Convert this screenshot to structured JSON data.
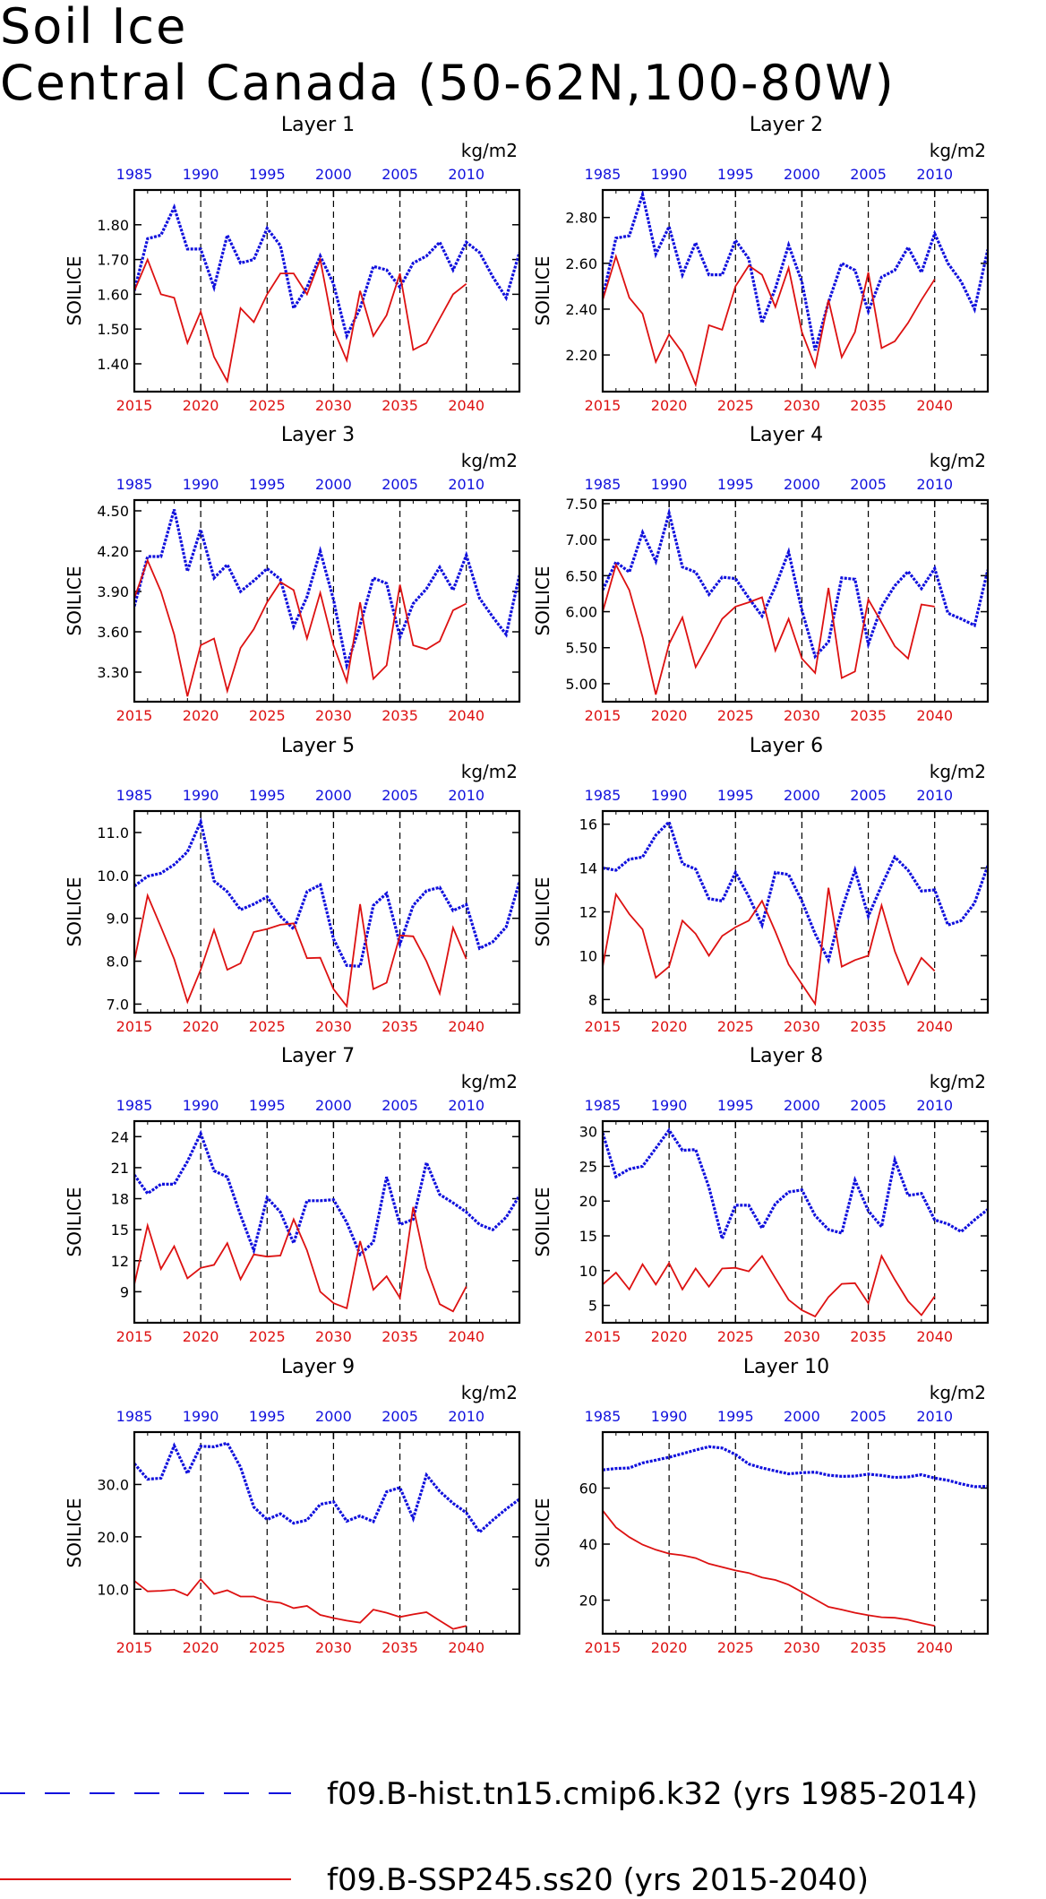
{
  "title": [
    "Soil Ice",
    "Central Canada (50-62N,100-80W)"
  ],
  "legend": [
    {
      "label": "f09.B-hist.tn15.cmip6.k32 (yrs 1985-2014)",
      "color": "#1111dd",
      "style": "dashed"
    },
    {
      "label": "f09.B-SSP245.ss20 (yrs 2015-2040)",
      "color": "#dd1111",
      "style": "solid"
    }
  ],
  "colors": {
    "hist": "#1111dd",
    "ssp": "#dd1111"
  },
  "chart_data": [
    {
      "type": "line",
      "title": "Layer 1",
      "ylabel": "SOILICE",
      "unit": "kg/m2",
      "ylim": [
        1.32,
        1.9
      ],
      "yticks": [
        "1.40",
        "1.50",
        "1.60",
        "1.70",
        "1.80"
      ],
      "x_top": [
        1985,
        1990,
        1995,
        2000,
        2005,
        2010
      ],
      "x_bottom": [
        2015,
        2020,
        2025,
        2030,
        2035,
        2040
      ],
      "series": [
        {
          "name": "f09.B-hist.tn15.cmip6.k32 (yrs 1985-2014)",
          "start": 1985,
          "values": [
            1.61,
            1.76,
            1.77,
            1.85,
            1.73,
            1.73,
            1.62,
            1.77,
            1.69,
            1.7,
            1.79,
            1.74,
            1.56,
            1.62,
            1.71,
            1.63,
            1.48,
            1.56,
            1.68,
            1.67,
            1.62,
            1.69,
            1.71,
            1.75,
            1.67,
            1.75,
            1.72,
            1.65,
            1.59,
            1.72
          ]
        },
        {
          "name": "f09.B-SSP245.ss20 (yrs 2015-2040)",
          "start": 2015,
          "values": [
            1.61,
            1.7,
            1.6,
            1.59,
            1.46,
            1.55,
            1.42,
            1.35,
            1.56,
            1.52,
            1.6,
            1.66,
            1.66,
            1.6,
            1.7,
            1.5,
            1.41,
            1.61,
            1.48,
            1.54,
            1.66,
            1.44,
            1.46,
            1.53,
            1.6,
            1.63
          ]
        }
      ]
    },
    {
      "type": "line",
      "title": "Layer 2",
      "ylabel": "SOILICE",
      "unit": "kg/m2",
      "ylim": [
        2.04,
        2.92
      ],
      "yticks": [
        "2.20",
        "2.40",
        "2.60",
        "2.80"
      ],
      "x_top": [
        1985,
        1990,
        1995,
        2000,
        2005,
        2010
      ],
      "x_bottom": [
        2015,
        2020,
        2025,
        2030,
        2035,
        2040
      ],
      "series": [
        {
          "name": "f09.B-hist.tn15.cmip6.k32 (yrs 1985-2014)",
          "start": 1985,
          "values": [
            2.45,
            2.71,
            2.72,
            2.9,
            2.64,
            2.76,
            2.55,
            2.69,
            2.55,
            2.55,
            2.7,
            2.62,
            2.34,
            2.49,
            2.68,
            2.52,
            2.22,
            2.43,
            2.6,
            2.57,
            2.39,
            2.54,
            2.57,
            2.67,
            2.56,
            2.73,
            2.6,
            2.52,
            2.4,
            2.66
          ]
        },
        {
          "name": "f09.B-SSP245.ss20 (yrs 2015-2040)",
          "start": 2015,
          "values": [
            2.44,
            2.63,
            2.45,
            2.38,
            2.17,
            2.29,
            2.21,
            2.07,
            2.33,
            2.31,
            2.5,
            2.59,
            2.55,
            2.41,
            2.58,
            2.3,
            2.15,
            2.44,
            2.19,
            2.3,
            2.56,
            2.23,
            2.26,
            2.34,
            2.44,
            2.53
          ]
        }
      ]
    },
    {
      "type": "line",
      "title": "Layer 3",
      "ylabel": "SOILICE",
      "unit": "kg/m2",
      "ylim": [
        3.08,
        4.58
      ],
      "yticks": [
        "3.30",
        "3.60",
        "3.90",
        "4.20",
        "4.50"
      ],
      "x_top": [
        1985,
        1990,
        1995,
        2000,
        2005,
        2010
      ],
      "x_bottom": [
        2015,
        2020,
        2025,
        2030,
        2035,
        2040
      ],
      "series": [
        {
          "name": "f09.B-hist.tn15.cmip6.k32 (yrs 1985-2014)",
          "start": 1985,
          "values": [
            3.79,
            4.16,
            4.16,
            4.51,
            4.05,
            4.36,
            4.0,
            4.1,
            3.9,
            3.98,
            4.07,
            3.99,
            3.64,
            3.86,
            4.2,
            3.84,
            3.35,
            3.65,
            4.0,
            3.96,
            3.56,
            3.81,
            3.92,
            4.08,
            3.91,
            4.17,
            3.85,
            3.71,
            3.58,
            4.02
          ]
        },
        {
          "name": "f09.B-SSP245.ss20 (yrs 2015-2040)",
          "start": 2015,
          "values": [
            3.85,
            4.13,
            3.9,
            3.58,
            3.12,
            3.5,
            3.55,
            3.16,
            3.48,
            3.62,
            3.82,
            3.97,
            3.91,
            3.55,
            3.89,
            3.5,
            3.23,
            3.82,
            3.25,
            3.35,
            3.95,
            3.5,
            3.47,
            3.53,
            3.76,
            3.81
          ]
        }
      ]
    },
    {
      "type": "line",
      "title": "Layer 4",
      "ylabel": "SOILICE",
      "unit": "kg/m2",
      "ylim": [
        4.75,
        7.55
      ],
      "yticks": [
        "5.00",
        "5.50",
        "6.00",
        "6.50",
        "7.00",
        "7.50"
      ],
      "x_top": [
        1985,
        1990,
        1995,
        2000,
        2005,
        2010
      ],
      "x_bottom": [
        2015,
        2020,
        2025,
        2030,
        2035,
        2040
      ],
      "series": [
        {
          "name": "f09.B-hist.tn15.cmip6.k32 (yrs 1985-2014)",
          "start": 1985,
          "values": [
            6.3,
            6.69,
            6.55,
            7.1,
            6.7,
            7.37,
            6.62,
            6.55,
            6.24,
            6.48,
            6.46,
            6.19,
            5.94,
            6.35,
            6.83,
            6.02,
            5.38,
            5.58,
            6.47,
            6.45,
            5.55,
            6.07,
            6.36,
            6.56,
            6.32,
            6.6,
            5.98,
            5.9,
            5.81,
            6.58
          ]
        },
        {
          "name": "f09.B-SSP245.ss20 (yrs 2015-2040)",
          "start": 2015,
          "values": [
            6.0,
            6.65,
            6.3,
            5.65,
            4.85,
            5.55,
            5.92,
            5.23,
            5.56,
            5.9,
            6.07,
            6.13,
            6.2,
            5.46,
            5.9,
            5.35,
            5.15,
            6.33,
            5.08,
            5.17,
            6.17,
            5.85,
            5.52,
            5.35,
            6.1,
            6.07
          ]
        }
      ]
    },
    {
      "type": "line",
      "title": "Layer 5",
      "ylabel": "SOILICE",
      "unit": "kg/m2",
      "ylim": [
        6.8,
        11.5
      ],
      "yticks": [
        "7.0",
        "8.0",
        "9.0",
        "10.0",
        "11.0"
      ],
      "x_top": [
        1985,
        1990,
        1995,
        2000,
        2005,
        2010
      ],
      "x_bottom": [
        2015,
        2020,
        2025,
        2030,
        2035,
        2040
      ],
      "series": [
        {
          "name": "f09.B-hist.tn15.cmip6.k32 (yrs 1985-2014)",
          "start": 1985,
          "values": [
            9.75,
            9.98,
            10.05,
            10.25,
            10.55,
            11.25,
            9.87,
            9.62,
            9.2,
            9.33,
            9.5,
            9.05,
            8.75,
            9.62,
            9.78,
            8.52,
            7.9,
            7.88,
            9.3,
            9.58,
            8.4,
            9.3,
            9.64,
            9.72,
            9.18,
            9.32,
            8.3,
            8.45,
            8.8,
            9.85
          ]
        },
        {
          "name": "f09.B-SSP245.ss20 (yrs 2015-2040)",
          "start": 2015,
          "values": [
            8.0,
            9.53,
            8.8,
            8.05,
            7.05,
            7.8,
            8.73,
            7.8,
            7.95,
            8.68,
            8.75,
            8.85,
            8.88,
            8.07,
            8.08,
            7.35,
            6.95,
            9.33,
            7.35,
            7.5,
            8.6,
            8.58,
            8.0,
            7.25,
            8.78,
            8.05
          ]
        }
      ]
    },
    {
      "type": "line",
      "title": "Layer 6",
      "ylabel": "SOILICE",
      "unit": "kg/m2",
      "ylim": [
        7.4,
        16.6
      ],
      "yticks": [
        "8",
        "10",
        "12",
        "14",
        "16"
      ],
      "x_top": [
        1985,
        1990,
        1995,
        2000,
        2005,
        2010
      ],
      "x_bottom": [
        2015,
        2020,
        2025,
        2030,
        2035,
        2040
      ],
      "series": [
        {
          "name": "f09.B-hist.tn15.cmip6.k32 (yrs 1985-2014)",
          "start": 1985,
          "values": [
            14.0,
            13.9,
            14.4,
            14.5,
            15.5,
            16.1,
            14.2,
            13.95,
            12.6,
            12.5,
            13.8,
            12.7,
            11.4,
            13.8,
            13.7,
            12.5,
            11.0,
            9.8,
            12.1,
            13.9,
            11.8,
            13.2,
            14.5,
            13.9,
            12.95,
            13.0,
            11.4,
            11.6,
            12.4,
            14.1
          ]
        },
        {
          "name": "f09.B-SSP245.ss20 (yrs 2015-2040)",
          "start": 2015,
          "values": [
            9.5,
            12.8,
            11.9,
            11.2,
            9.0,
            9.5,
            11.6,
            11.0,
            10.0,
            10.9,
            11.3,
            11.6,
            12.5,
            11.1,
            9.6,
            8.7,
            7.8,
            13.1,
            9.5,
            9.8,
            10.0,
            12.3,
            10.2,
            8.7,
            9.9,
            9.3
          ]
        }
      ]
    },
    {
      "type": "line",
      "title": "Layer 7",
      "ylabel": "SOILICE",
      "unit": "kg/m2",
      "ylim": [
        6.0,
        25.5
      ],
      "yticks": [
        "9",
        "12",
        "15",
        "18",
        "21",
        "24"
      ],
      "x_top": [
        1985,
        1990,
        1995,
        2000,
        2005,
        2010
      ],
      "x_bottom": [
        2015,
        2020,
        2025,
        2030,
        2035,
        2040
      ],
      "series": [
        {
          "name": "f09.B-hist.tn15.cmip6.k32 (yrs 1985-2014)",
          "start": 1985,
          "values": [
            20.3,
            18.5,
            19.4,
            19.4,
            21.6,
            24.3,
            20.7,
            20.1,
            16.4,
            13.0,
            18.1,
            16.7,
            13.7,
            17.8,
            17.8,
            17.9,
            15.7,
            12.6,
            13.8,
            20.1,
            15.5,
            16.0,
            21.5,
            18.4,
            17.6,
            16.7,
            15.5,
            15.0,
            16.2,
            18.3
          ]
        },
        {
          "name": "f09.B-SSP245.ss20 (yrs 2015-2040)",
          "start": 2015,
          "values": [
            9.7,
            15.4,
            11.2,
            13.4,
            10.3,
            11.3,
            11.6,
            13.7,
            10.2,
            12.6,
            12.4,
            12.5,
            16.0,
            13.0,
            9.0,
            7.9,
            7.4,
            13.9,
            9.2,
            10.5,
            8.4,
            17.2,
            11.3,
            7.8,
            7.1,
            9.5
          ]
        }
      ]
    },
    {
      "type": "line",
      "title": "Layer 8",
      "ylabel": "SOILICE",
      "unit": "kg/m2",
      "ylim": [
        2.5,
        31.5
      ],
      "yticks": [
        "5",
        "10",
        "15",
        "20",
        "25",
        "30"
      ],
      "x_top": [
        1985,
        1990,
        1995,
        2000,
        2005,
        2010
      ],
      "x_bottom": [
        2015,
        2020,
        2025,
        2030,
        2035,
        2040
      ],
      "series": [
        {
          "name": "f09.B-hist.tn15.cmip6.k32 (yrs 1985-2014)",
          "start": 1985,
          "values": [
            29.8,
            23.5,
            24.6,
            25.0,
            27.6,
            30.2,
            27.3,
            27.4,
            22.0,
            14.6,
            19.4,
            19.4,
            16.1,
            19.6,
            21.3,
            21.6,
            17.9,
            15.9,
            15.4,
            23.0,
            18.6,
            16.3,
            25.9,
            20.8,
            21.1,
            17.3,
            16.7,
            15.6,
            17.3,
            18.8
          ]
        },
        {
          "name": "f09.B-SSP245.ss20 (yrs 2015-2040)",
          "start": 2015,
          "values": [
            8.0,
            9.7,
            7.3,
            10.9,
            8.0,
            11.1,
            7.3,
            10.3,
            7.7,
            10.3,
            10.4,
            9.9,
            12.1,
            8.9,
            5.8,
            4.3,
            3.4,
            6.2,
            8.1,
            8.2,
            5.3,
            12.1,
            8.7,
            5.6,
            3.6,
            6.3
          ]
        }
      ]
    },
    {
      "type": "line",
      "title": "Layer 9",
      "ylabel": "SOILICE",
      "unit": "kg/m2",
      "ylim": [
        1.5,
        40.0
      ],
      "yticks": [
        "10.0",
        "20.0",
        "30.0"
      ],
      "x_top": [
        1985,
        1990,
        1995,
        2000,
        2005,
        2010
      ],
      "x_bottom": [
        2015,
        2020,
        2025,
        2030,
        2035,
        2040
      ],
      "series": [
        {
          "name": "f09.B-hist.tn15.cmip6.k32 (yrs 1985-2014)",
          "start": 1985,
          "values": [
            34.0,
            31.0,
            31.2,
            37.4,
            32.1,
            37.3,
            37.2,
            37.9,
            33.3,
            25.7,
            23.3,
            24.4,
            22.6,
            23.2,
            26.2,
            26.7,
            23.0,
            24.0,
            22.9,
            28.6,
            29.4,
            23.5,
            31.8,
            28.7,
            26.4,
            24.6,
            20.9,
            23.2,
            25.3,
            27.2
          ]
        },
        {
          "name": "f09.B-SSP245.ss20 (yrs 2015-2040)",
          "start": 2015,
          "values": [
            11.6,
            9.6,
            9.7,
            9.9,
            8.8,
            11.9,
            9.1,
            9.8,
            8.6,
            8.6,
            7.7,
            7.4,
            6.4,
            6.8,
            5.1,
            4.5,
            4.0,
            3.6,
            6.1,
            5.5,
            4.7,
            5.2,
            5.6,
            4.0,
            2.4,
            3.0
          ]
        }
      ]
    },
    {
      "type": "line",
      "title": "Layer 10",
      "ylabel": "SOILICE",
      "unit": "kg/m2",
      "ylim": [
        8.0,
        80.0
      ],
      "yticks": [
        "20",
        "40",
        "60"
      ],
      "x_top": [
        1985,
        1990,
        1995,
        2000,
        2005,
        2010
      ],
      "x_bottom": [
        2015,
        2020,
        2025,
        2030,
        2035,
        2040
      ],
      "series": [
        {
          "name": "f09.B-hist.tn15.cmip6.k32 (yrs 1985-2014)",
          "start": 1985,
          "values": [
            66.5,
            67.0,
            67.2,
            69.0,
            70.0,
            71.0,
            72.3,
            73.6,
            74.8,
            74.3,
            72.0,
            68.6,
            67.2,
            66.1,
            65.1,
            65.5,
            65.7,
            64.6,
            64.2,
            64.3,
            65.0,
            64.5,
            63.8,
            64.0,
            64.8,
            63.6,
            62.8,
            61.5,
            60.5,
            60.6
          ]
        },
        {
          "name": "f09.B-SSP245.ss20 (yrs 2015-2040)",
          "start": 2015,
          "values": [
            52.0,
            46.0,
            42.5,
            39.8,
            38.0,
            36.6,
            36.0,
            35.0,
            33.0,
            31.8,
            30.6,
            29.7,
            28.1,
            27.2,
            25.5,
            22.9,
            20.3,
            17.6,
            16.6,
            15.5,
            14.6,
            13.9,
            13.7,
            13.0,
            11.8,
            10.8
          ]
        }
      ]
    }
  ]
}
